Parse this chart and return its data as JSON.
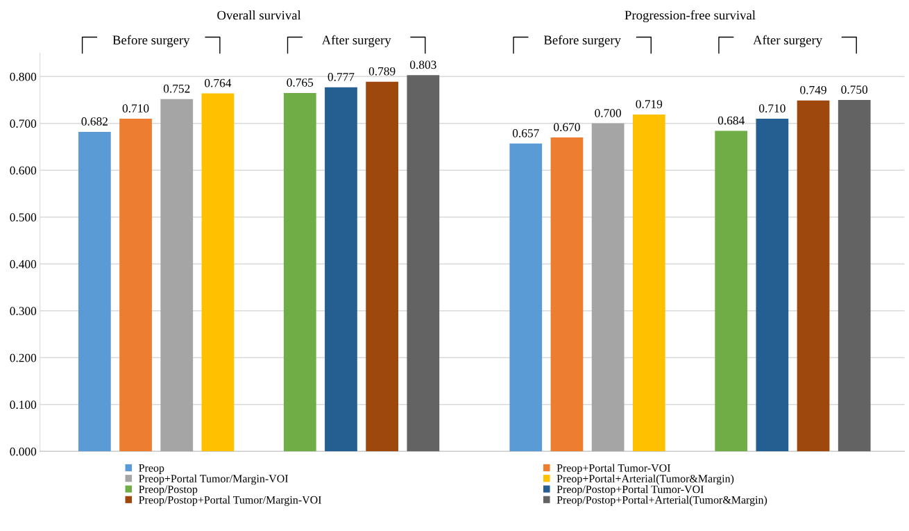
{
  "chart_data": {
    "type": "bar",
    "categories": [
      "Overall survival",
      "Progression-free survival"
    ],
    "annotations": [
      "Before surgery",
      "After surgery",
      "Before surgery",
      "After surgery"
    ],
    "series": [
      {
        "name": "Preop",
        "color": "#5b9bd5",
        "values": [
          0.682,
          0.657
        ],
        "value_labels": [
          "0.682",
          "0.657"
        ]
      },
      {
        "name": "Preop+Portal Tumor-VOI",
        "color": "#ed7d31",
        "values": [
          0.71,
          0.67
        ],
        "value_labels": [
          "0.710",
          "0.670"
        ]
      },
      {
        "name": "Preop+Portal Tumor/Margin-VOI",
        "color": "#a5a5a5",
        "values": [
          0.752,
          0.7
        ],
        "value_labels": [
          "0.752",
          "0.700"
        ]
      },
      {
        "name": "Preop+Portal+Arterial(Tumor&Margin)",
        "color": "#ffc000",
        "values": [
          0.764,
          0.719
        ],
        "value_labels": [
          "0.764",
          "0.719"
        ]
      },
      {
        "name": "Preop/Postop",
        "color": "#70ad47",
        "values": [
          0.765,
          0.684
        ],
        "value_labels": [
          "0.765",
          "0.684"
        ]
      },
      {
        "name": "Preop/Postop+Portal Tumor-VOI",
        "color": "#255e91",
        "values": [
          0.777,
          0.71
        ],
        "value_labels": [
          "0.777",
          "0.710"
        ]
      },
      {
        "name": "Preop/Postop+Portal Tumor/Margin-VOI",
        "color": "#9e480e",
        "values": [
          0.789,
          0.749
        ],
        "value_labels": [
          "0.789",
          "0.749"
        ]
      },
      {
        "name": "Preop/Postop+Portal+Arterial(Tumor&Margin)",
        "color": "#636363",
        "values": [
          0.803,
          0.75
        ],
        "value_labels": [
          "0.803",
          "0.750"
        ]
      }
    ],
    "ylim": [
      0,
      0.85
    ],
    "yticks": [
      {
        "value": 0,
        "label": "0.000"
      },
      {
        "value": 0.1,
        "label": "0.100"
      },
      {
        "value": 0.2,
        "label": "0.200"
      },
      {
        "value": 0.3,
        "label": "0.300"
      },
      {
        "value": 0.4,
        "label": "0.400"
      },
      {
        "value": 0.5,
        "label": "0.500"
      },
      {
        "value": 0.6,
        "label": "0.600"
      },
      {
        "value": 0.7,
        "label": "0.700"
      },
      {
        "value": 0.8,
        "label": "0.800"
      }
    ],
    "grid": "y",
    "legend": "bottom"
  }
}
